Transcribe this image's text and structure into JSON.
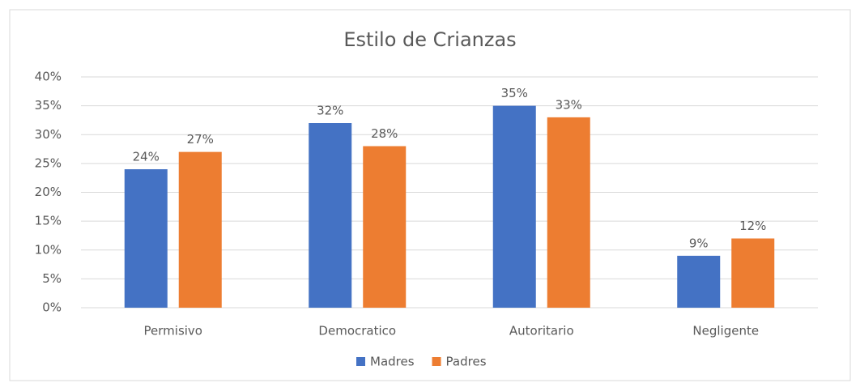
{
  "chart_data": {
    "type": "bar",
    "title": "Estilo de Crianzas",
    "categories": [
      "Permisivo",
      "Democratico",
      "Autoritario",
      "Negligente"
    ],
    "series": [
      {
        "name": "Madres",
        "color": "#4472c4",
        "values": [
          24,
          32,
          35,
          9
        ],
        "value_labels": [
          "24%",
          "32%",
          "35%",
          "9%"
        ]
      },
      {
        "name": "Padres",
        "color": "#ed7d31",
        "values": [
          27,
          28,
          33,
          12
        ],
        "value_labels": [
          "27%",
          "28%",
          "33%",
          "12%"
        ]
      }
    ],
    "ylim": [
      0,
      40
    ],
    "yticks": [
      {
        "value": 0,
        "label": "0%"
      },
      {
        "value": 5,
        "label": "5%"
      },
      {
        "value": 10,
        "label": "10%"
      },
      {
        "value": 15,
        "label": "15%"
      },
      {
        "value": 20,
        "label": "20%"
      },
      {
        "value": 25,
        "label": "25%"
      },
      {
        "value": 30,
        "label": "30%"
      },
      {
        "value": 35,
        "label": "35%"
      },
      {
        "value": 40,
        "label": "40%"
      }
    ],
    "grid": true,
    "legend": "bottom"
  }
}
